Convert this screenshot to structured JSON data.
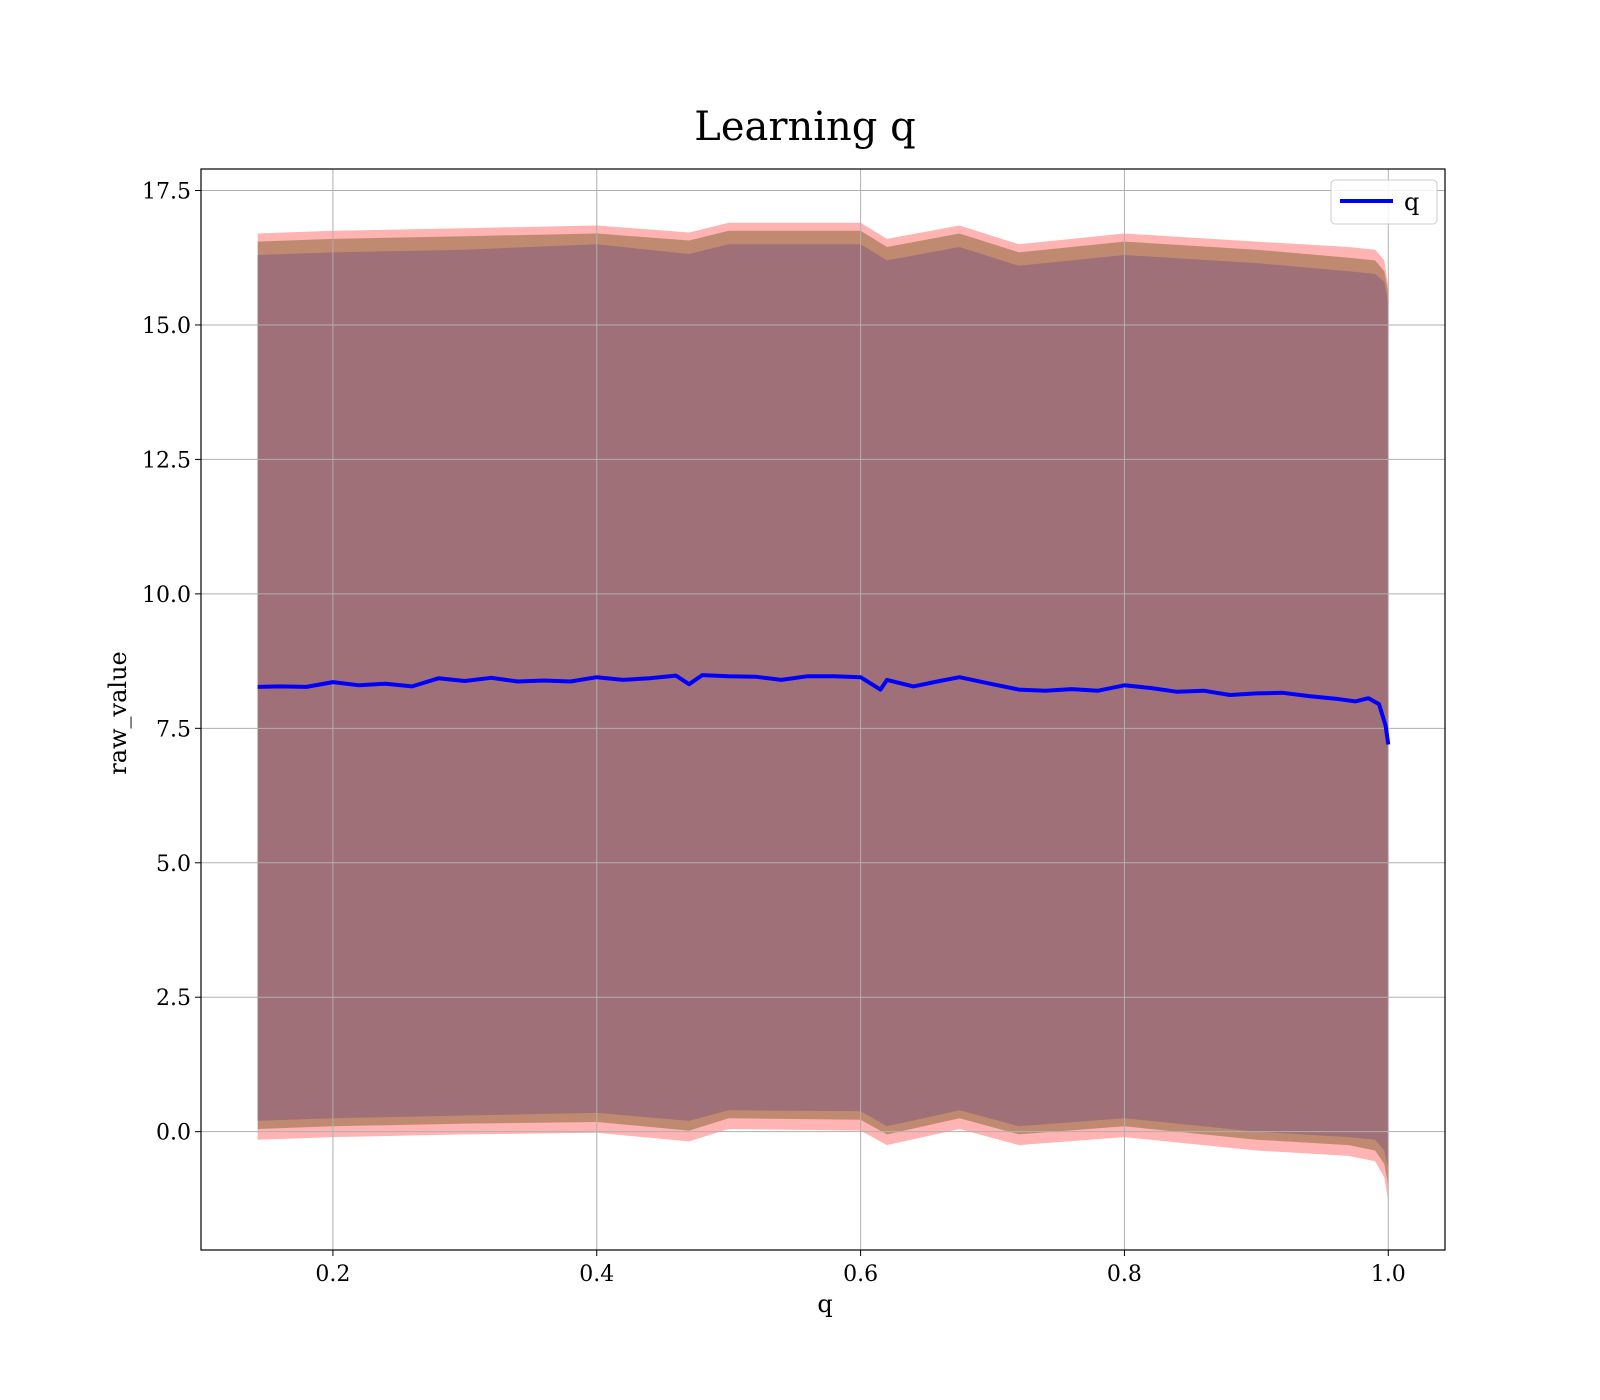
{
  "chart_data": {
    "type": "line",
    "title": "Learning q",
    "xlabel": "q",
    "ylabel": "raw_value",
    "xlim": [
      0.1,
      1.043
    ],
    "ylim": [
      -2.2,
      17.9
    ],
    "xticks": [
      0.2,
      0.4,
      0.6,
      0.8,
      1.0
    ],
    "xtick_labels": [
      "0.2",
      "0.4",
      "0.6",
      "0.8",
      "1.0"
    ],
    "yticks": [
      0.0,
      2.5,
      5.0,
      7.5,
      10.0,
      12.5,
      15.0,
      17.5
    ],
    "ytick_labels": [
      "0.0",
      "2.5",
      "5.0",
      "7.5",
      "10.0",
      "12.5",
      "15.0",
      "17.5"
    ],
    "grid": true,
    "legend": {
      "placement": "top-right",
      "entries": [
        "q"
      ]
    },
    "series": [
      {
        "name": "q",
        "color": "#0000ff",
        "x": [
          0.143,
          0.16,
          0.18,
          0.2,
          0.22,
          0.24,
          0.26,
          0.28,
          0.3,
          0.32,
          0.34,
          0.36,
          0.38,
          0.4,
          0.42,
          0.44,
          0.46,
          0.47,
          0.48,
          0.5,
          0.52,
          0.54,
          0.56,
          0.58,
          0.6,
          0.615,
          0.62,
          0.64,
          0.66,
          0.675,
          0.7,
          0.72,
          0.74,
          0.76,
          0.78,
          0.8,
          0.82,
          0.84,
          0.86,
          0.88,
          0.9,
          0.92,
          0.94,
          0.96,
          0.975,
          0.985,
          0.993,
          0.998,
          1.0
        ],
        "y": [
          8.27,
          8.28,
          8.27,
          8.36,
          8.3,
          8.33,
          8.28,
          8.43,
          8.38,
          8.44,
          8.37,
          8.39,
          8.37,
          8.45,
          8.4,
          8.43,
          8.48,
          8.32,
          8.49,
          8.47,
          8.46,
          8.4,
          8.47,
          8.47,
          8.45,
          8.22,
          8.4,
          8.28,
          8.38,
          8.45,
          8.32,
          8.22,
          8.2,
          8.23,
          8.2,
          8.3,
          8.25,
          8.18,
          8.2,
          8.12,
          8.15,
          8.16,
          8.1,
          8.05,
          8.0,
          8.06,
          7.95,
          7.55,
          7.2
        ]
      }
    ],
    "bands": [
      {
        "color": "#ff9999",
        "opacity": 0.75,
        "x": [
          0.143,
          0.2,
          0.3,
          0.4,
          0.47,
          0.5,
          0.6,
          0.62,
          0.675,
          0.72,
          0.8,
          0.9,
          0.97,
          0.99,
          0.997,
          1.0
        ],
        "upper": [
          16.7,
          16.75,
          16.8,
          16.85,
          16.72,
          16.9,
          16.9,
          16.6,
          16.85,
          16.5,
          16.7,
          16.55,
          16.45,
          16.4,
          16.2,
          15.7
        ],
        "lower": [
          -0.15,
          -0.1,
          -0.05,
          -0.02,
          -0.18,
          0.05,
          0.02,
          -0.25,
          0.05,
          -0.25,
          -0.1,
          -0.35,
          -0.45,
          -0.55,
          -0.85,
          -1.3
        ]
      },
      {
        "color": "#b08060",
        "opacity": 0.8,
        "x": [
          0.143,
          0.2,
          0.3,
          0.4,
          0.47,
          0.5,
          0.6,
          0.62,
          0.675,
          0.72,
          0.8,
          0.9,
          0.97,
          0.99,
          0.997,
          1.0
        ],
        "upper": [
          16.55,
          16.6,
          16.65,
          16.7,
          16.57,
          16.75,
          16.75,
          16.45,
          16.7,
          16.35,
          16.55,
          16.4,
          16.25,
          16.2,
          16.0,
          15.6
        ],
        "lower": [
          0.05,
          0.1,
          0.15,
          0.18,
          0.02,
          0.25,
          0.22,
          -0.05,
          0.25,
          -0.05,
          0.1,
          -0.15,
          -0.25,
          -0.35,
          -0.6,
          -1.0
        ]
      },
      {
        "color": "#a07078",
        "opacity": 1.0,
        "x": [
          0.143,
          0.2,
          0.3,
          0.4,
          0.47,
          0.5,
          0.6,
          0.62,
          0.675,
          0.72,
          0.8,
          0.9,
          0.97,
          0.99,
          0.997,
          1.0
        ],
        "upper": [
          16.3,
          16.35,
          16.4,
          16.5,
          16.32,
          16.5,
          16.5,
          16.2,
          16.45,
          16.1,
          16.3,
          16.15,
          16.0,
          15.95,
          15.8,
          15.4
        ],
        "lower": [
          0.2,
          0.25,
          0.3,
          0.35,
          0.2,
          0.4,
          0.38,
          0.1,
          0.4,
          0.1,
          0.25,
          0.0,
          -0.1,
          -0.15,
          -0.35,
          -0.7
        ]
      }
    ]
  }
}
